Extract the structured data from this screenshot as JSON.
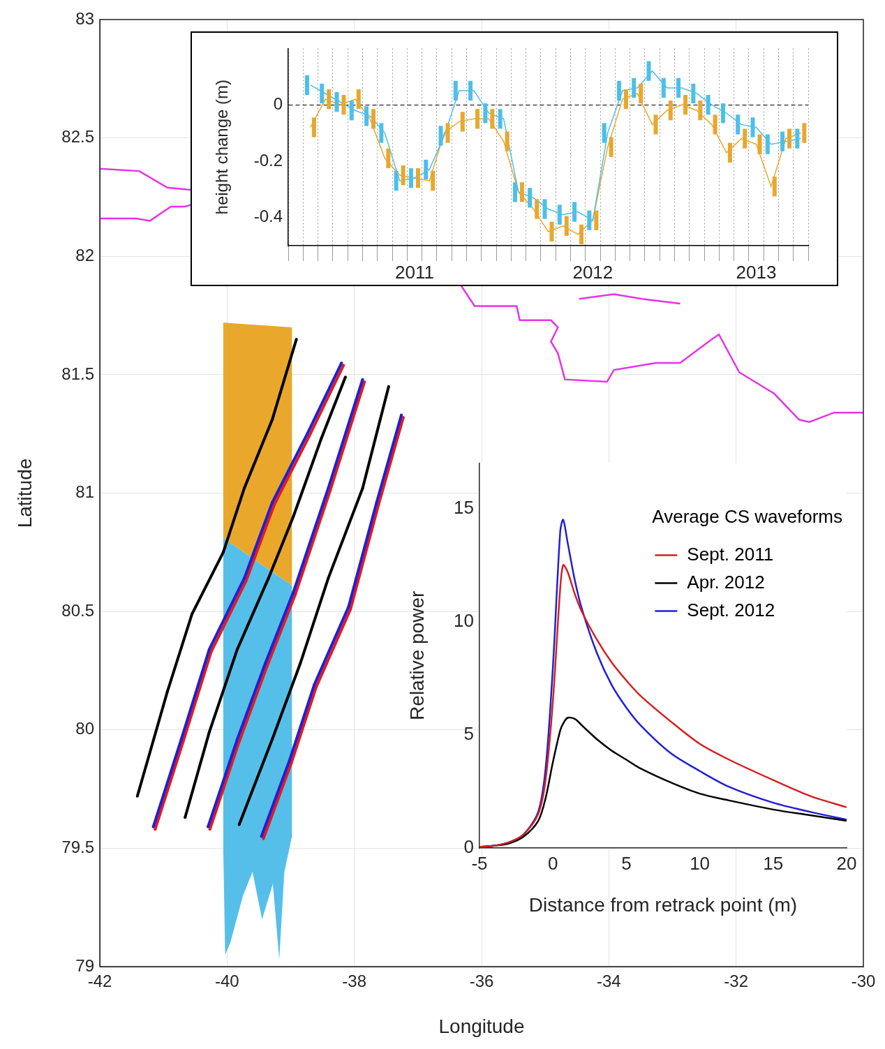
{
  "chart_data": [
    {
      "type": "scatter",
      "x_label": "Longitude",
      "y_label": "Latitude",
      "xlim": [
        -42,
        -30
      ],
      "xticks": [
        -42,
        -40,
        -38,
        -36,
        -34,
        -32,
        -30
      ],
      "ylim": [
        79,
        83
      ],
      "yticks": [
        79,
        79.5,
        80,
        80.5,
        81,
        81.5,
        82,
        82.5,
        83
      ],
      "grid": true,
      "series": [
        {
          "type": "polygon",
          "color": "#e9a82b",
          "x": [
            -40.06,
            -38.98,
            -38.98,
            -40.06
          ],
          "y": [
            81.72,
            81.7,
            80.61,
            80.81
          ]
        },
        {
          "type": "polygon",
          "color": "#56bfe9",
          "x": [
            -40.06,
            -38.98,
            -38.98,
            -39.1,
            -39.18,
            -39.28,
            -39.45,
            -39.6,
            -39.75,
            -39.95,
            -40.03,
            -40.06
          ],
          "y": [
            80.81,
            80.61,
            79.55,
            79.4,
            79.03,
            79.35,
            79.2,
            79.4,
            79.3,
            79.1,
            79.05,
            79.5
          ]
        },
        {
          "type": "line",
          "marker": "dot",
          "color": "#000000",
          "x": [
            -41.41,
            -40.94,
            -40.55,
            -40.06,
            -39.73,
            -39.29,
            -38.91
          ],
          "y": [
            79.72,
            80.16,
            80.49,
            80.75,
            81.02,
            81.31,
            81.65
          ]
        },
        {
          "type": "line",
          "marker": "dot",
          "color": "#1f1fd6",
          "x": [
            -41.16,
            -40.72,
            -40.28,
            -39.73,
            -39.29,
            -38.74,
            -38.2
          ],
          "y": [
            79.59,
            79.96,
            80.34,
            80.64,
            80.96,
            81.25,
            81.55
          ]
        },
        {
          "type": "line",
          "marker": "dot",
          "color": "#e41a1c",
          "x": [
            -41.13,
            -40.69,
            -40.25,
            -39.7,
            -39.26,
            -38.71,
            -38.17
          ],
          "y": [
            79.58,
            79.95,
            80.33,
            80.63,
            80.95,
            81.24,
            81.54
          ]
        },
        {
          "type": "line",
          "marker": "dot",
          "color": "#000000",
          "x": [
            -40.66,
            -40.28,
            -39.84,
            -39.35,
            -38.96,
            -38.52,
            -38.14
          ],
          "y": [
            79.63,
            79.99,
            80.34,
            80.64,
            80.9,
            81.23,
            81.49
          ]
        },
        {
          "type": "line",
          "marker": "dot",
          "color": "#1f1fd6",
          "x": [
            -40.3,
            -39.84,
            -39.4,
            -38.96,
            -38.41,
            -37.87
          ],
          "y": [
            79.59,
            79.96,
            80.28,
            80.58,
            81.02,
            81.48
          ]
        },
        {
          "type": "line",
          "marker": "dot",
          "color": "#e41a1c",
          "x": [
            -40.27,
            -39.81,
            -39.37,
            -38.93,
            -38.38,
            -37.84
          ],
          "y": [
            79.58,
            79.95,
            80.27,
            80.57,
            81.01,
            81.47
          ]
        },
        {
          "type": "line",
          "marker": "dot",
          "color": "#000000",
          "x": [
            -39.81,
            -39.29,
            -38.85,
            -38.41,
            -37.87,
            -37.46
          ],
          "y": [
            79.6,
            79.96,
            80.28,
            80.64,
            81.02,
            81.45
          ]
        },
        {
          "type": "line",
          "marker": "dot",
          "color": "#1f1fd6",
          "x": [
            -39.46,
            -39.02,
            -38.63,
            -38.09,
            -37.65,
            -37.26
          ],
          "y": [
            79.55,
            79.87,
            80.19,
            80.52,
            80.96,
            81.33
          ]
        },
        {
          "type": "line",
          "marker": "dot",
          "color": "#e41a1c",
          "x": [
            -39.43,
            -38.99,
            -38.6,
            -38.06,
            -37.62,
            -37.23
          ],
          "y": [
            79.54,
            79.86,
            80.18,
            80.51,
            80.95,
            81.32
          ]
        },
        {
          "type": "line",
          "color": "#e633e6",
          "x": [
            -42,
            -41.38,
            -40.94,
            -40.55,
            -40.28
          ],
          "y": [
            82.37,
            82.36,
            82.29,
            82.28,
            82.27
          ]
        },
        {
          "type": "line",
          "color": "#e633e6",
          "x": [
            -42,
            -41.43,
            -41.21,
            -41.05,
            -40.88,
            -40.66,
            -40.4
          ],
          "y": [
            82.16,
            82.16,
            82.15,
            82.18,
            82.21,
            82.21,
            82.23
          ]
        },
        {
          "type": "line",
          "color": "#e633e6",
          "x": [
            -36.33,
            -36.11,
            -35.45,
            -35.4,
            -34.91,
            -34.8,
            -34.91,
            -34.8,
            -34.69,
            -34.03,
            -33.92,
            -33.26,
            -32.88,
            -32.38,
            -32.27,
            -31.95,
            -31.4,
            -31.01,
            -30.85,
            -30.46,
            -30
          ],
          "y": [
            81.88,
            81.79,
            81.79,
            81.73,
            81.73,
            81.7,
            81.64,
            81.59,
            81.48,
            81.47,
            81.52,
            81.55,
            81.55,
            81.65,
            81.67,
            81.51,
            81.42,
            81.31,
            81.3,
            81.34,
            81.34
          ]
        },
        {
          "type": "line",
          "color": "#e633e6",
          "x": [
            -34.47,
            -33.92,
            -33.48,
            -32.88
          ],
          "y": [
            81.82,
            81.84,
            81.82,
            81.8
          ]
        }
      ]
    },
    {
      "type": "line",
      "y_label": "height change (m)",
      "categories": [
        null,
        null,
        null,
        null,
        null,
        null,
        null,
        null,
        "2011",
        null,
        null,
        null,
        null,
        null,
        null,
        null,
        null,
        null,
        null,
        null,
        "2012",
        null,
        null,
        null,
        null,
        null,
        null,
        null,
        null,
        null,
        null,
        "2013",
        null,
        null,
        null
      ],
      "ylim": [
        -0.5,
        0.2
      ],
      "yticks": [
        -0.4,
        -0.2,
        0
      ],
      "grid": true,
      "series": [
        {
          "color": "#4dbfe8",
          "values": [
            null,
            0.07,
            0.04,
            0.01,
            -0.02,
            -0.04,
            -0.1,
            -0.27,
            -0.26,
            -0.23,
            -0.11,
            0.05,
            0.05,
            -0.03,
            -0.05,
            -0.31,
            -0.33,
            -0.37,
            -0.39,
            -0.38,
            -0.41,
            -0.1,
            0.05,
            0.06,
            0.12,
            0.06,
            0.06,
            0.04,
            0.0,
            -0.03,
            -0.07,
            -0.08,
            -0.14,
            -0.13,
            -0.12
          ],
          "errors": [
            null,
            0.035,
            0.035,
            0.035,
            0.035,
            0.035,
            0.035,
            0.035,
            0.035,
            0.035,
            0.035,
            0.035,
            0.035,
            0.035,
            0.035,
            0.035,
            0.035,
            0.035,
            0.035,
            0.035,
            0.035,
            0.035,
            0.035,
            0.035,
            0.035,
            0.035,
            0.035,
            0.035,
            0.035,
            0.035,
            0.035,
            0.035,
            0.035,
            0.035,
            0.035
          ]
        },
        {
          "color": "#e8a82e",
          "values": [
            null,
            -0.08,
            0.02,
            0.0,
            0.02,
            -0.05,
            -0.19,
            -0.25,
            -0.26,
            -0.27,
            -0.1,
            -0.06,
            -0.05,
            -0.05,
            -0.13,
            -0.31,
            -0.37,
            -0.45,
            -0.43,
            -0.46,
            -0.41,
            -0.15,
            0.02,
            0.04,
            -0.07,
            -0.02,
            0.0,
            -0.02,
            -0.07,
            -0.17,
            -0.12,
            -0.14,
            -0.29,
            -0.12,
            -0.1
          ],
          "errors": [
            null,
            0.035,
            0.035,
            0.035,
            0.035,
            0.035,
            0.035,
            0.035,
            0.035,
            0.035,
            0.035,
            0.035,
            0.035,
            0.035,
            0.035,
            0.035,
            0.035,
            0.035,
            0.035,
            0.035,
            0.035,
            0.035,
            0.035,
            0.035,
            0.035,
            0.035,
            0.035,
            0.035,
            0.035,
            0.035,
            0.035,
            0.035,
            0.035,
            0.035,
            0.035
          ]
        }
      ]
    },
    {
      "type": "line",
      "title": "Average CS waveforms",
      "legend": "top-right",
      "x_label": "Distance from retrack point (m)",
      "y_label": "Relative power",
      "x": [
        -5,
        -4,
        -3,
        -2,
        -1,
        -0.5,
        0,
        0.5,
        0.7,
        1,
        1.5,
        2,
        3,
        4,
        5,
        6,
        8,
        10,
        12,
        15,
        17.5,
        20
      ],
      "xlim": [
        -5,
        20
      ],
      "xticks": [
        -5,
        0,
        5,
        10,
        15,
        20
      ],
      "ylim": [
        0,
        17
      ],
      "yticks": [
        0,
        5,
        10,
        15
      ],
      "series": [
        {
          "name": "Sept. 2011",
          "color": "#d42020",
          "values": [
            0.05,
            0.1,
            0.25,
            0.6,
            1.5,
            3,
            6.5,
            11.5,
            12.5,
            12.2,
            11.2,
            10.4,
            9.2,
            8.2,
            7.4,
            6.7,
            5.6,
            4.6,
            3.9,
            3.0,
            2.3,
            1.8
          ]
        },
        {
          "name": "Apr. 2012",
          "color": "#000000",
          "values": [
            0.05,
            0.1,
            0.2,
            0.5,
            1.2,
            2.2,
            3.8,
            5.2,
            5.5,
            5.75,
            5.7,
            5.4,
            4.8,
            4.3,
            3.9,
            3.5,
            2.9,
            2.4,
            2.1,
            1.7,
            1.45,
            1.2
          ]
        },
        {
          "name": "Sept. 2012",
          "color": "#1f1fd6",
          "values": [
            0.05,
            0.1,
            0.25,
            0.6,
            1.6,
            3.5,
            8,
            14,
            14.5,
            13.5,
            11.8,
            10.5,
            8.6,
            7.2,
            6.2,
            5.4,
            4.2,
            3.4,
            2.7,
            2.0,
            1.6,
            1.25
          ]
        }
      ]
    }
  ]
}
